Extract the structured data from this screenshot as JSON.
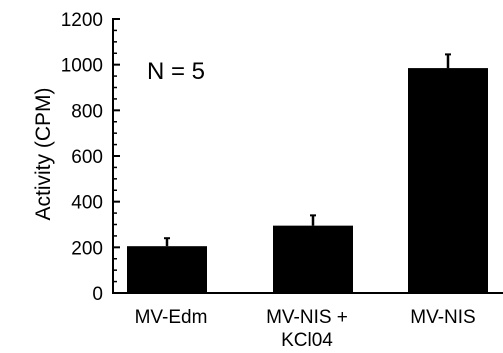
{
  "chart_data": {
    "type": "bar",
    "title": "",
    "xlabel": "",
    "ylabel": "Activity (CPM)",
    "ylim": [
      0,
      1200
    ],
    "yticks": [
      0,
      200,
      400,
      600,
      800,
      1000,
      1200
    ],
    "categories": [
      {
        "lines": [
          "MV-Edm"
        ]
      },
      {
        "lines": [
          "MV-NIS +",
          "KCl04"
        ]
      },
      {
        "lines": [
          "MV-NIS"
        ]
      }
    ],
    "values": [
      205,
      295,
      985
    ],
    "errors": [
      35,
      45,
      60
    ],
    "annotation": "N = 5",
    "grid": false,
    "bar_color": "#000000"
  }
}
